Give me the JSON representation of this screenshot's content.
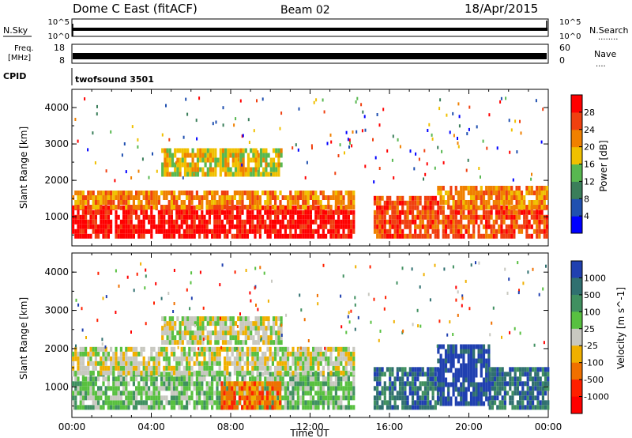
{
  "header": {
    "title": "Dome C East (fitACF)",
    "beam": "Beam 02",
    "date": "18/Apr/2015"
  },
  "status_panels": {
    "nsky_label": "N.Sky",
    "nsearch_label": "N.Search",
    "nsearch_dots": "........",
    "noise_ticks": [
      "10^5",
      "10^0"
    ],
    "freq_label_1": "Freq.",
    "freq_label_2": "[MHz]",
    "freq_ticks": [
      "18",
      "8"
    ],
    "nave_label": "Nave",
    "nave_dots": "....",
    "nave_ticks": [
      "60",
      "0"
    ],
    "cpid_label": "CPID",
    "cpid_value": "twofsound 3501"
  },
  "chart_data": [
    {
      "type": "heatmap",
      "name": "power",
      "ylabel": "Slant Range [km]",
      "xlabel": "Time UT",
      "y_ticks": [
        "1000",
        "2000",
        "3000",
        "4000"
      ],
      "x_ticks": [
        "00:00",
        "04:00",
        "08:00",
        "12:00",
        "16:00",
        "20:00",
        "00:00"
      ],
      "xlim": [
        0,
        24
      ],
      "ylim": [
        200,
        4500
      ],
      "colorbar": {
        "label": "Power [dB]",
        "range": [
          0,
          32
        ],
        "ticks": [
          "4",
          "8",
          "12",
          "16",
          "20",
          "24",
          "28"
        ],
        "colors": [
          "#0000ff",
          "#2050b0",
          "#3a7e5a",
          "#58b850",
          "#f0c000",
          "#f08000",
          "#f04010",
          "#ff0000"
        ]
      },
      "bands": [
        {
          "t0": 0,
          "t1": 14.2,
          "r0": 400,
          "r1": 1200,
          "level": 7
        },
        {
          "t0": 0,
          "t1": 14.2,
          "r0": 1200,
          "r1": 1700,
          "level": 5
        },
        {
          "t0": 15.2,
          "t1": 18.4,
          "r0": 400,
          "r1": 1500,
          "level": 6
        },
        {
          "t0": 18.4,
          "t1": 24,
          "r0": 400,
          "r1": 1200,
          "level": 6
        },
        {
          "t0": 18.4,
          "t1": 24,
          "r0": 1200,
          "r1": 1800,
          "level": 5
        },
        {
          "t0": 4.5,
          "t1": 10.5,
          "r0": 2100,
          "r1": 2800,
          "level": 4
        }
      ]
    },
    {
      "type": "heatmap",
      "name": "velocity",
      "ylabel": "Slant Range [km]",
      "xlabel": "Time UT",
      "y_ticks": [
        "1000",
        "2000",
        "3000",
        "4000"
      ],
      "x_ticks": [
        "00:00",
        "04:00",
        "08:00",
        "12:00",
        "16:00",
        "20:00",
        "00:00"
      ],
      "xlim": [
        0,
        24
      ],
      "ylim": [
        200,
        4500
      ],
      "colorbar": {
        "label": "Velocity [m s^-1]",
        "ticks": [
          "1000",
          "500",
          "100",
          "25",
          "-25",
          "-100",
          "-500",
          "-1000"
        ],
        "colors": [
          "#2040b0",
          "#307070",
          "#409060",
          "#58c040",
          "#c8c8c0",
          "#f0b000",
          "#f07000",
          "#ff2000",
          "#ff0000"
        ]
      },
      "bands": [
        {
          "t0": 0,
          "t1": 14.2,
          "r0": 400,
          "r1": 1300,
          "level": 3
        },
        {
          "t0": 0,
          "t1": 14.2,
          "r0": 1300,
          "r1": 2000,
          "level": 4
        },
        {
          "t0": 7.5,
          "t1": 10.5,
          "r0": 400,
          "r1": 1100,
          "level": 6
        },
        {
          "t0": 15.2,
          "t1": 18.4,
          "r0": 400,
          "r1": 1500,
          "level": 1
        },
        {
          "t0": 18.4,
          "t1": 21,
          "r0": 500,
          "r1": 2000,
          "level": 0
        },
        {
          "t0": 21,
          "t1": 24,
          "r0": 400,
          "r1": 1500,
          "level": 1
        },
        {
          "t0": 4.5,
          "t1": 10.5,
          "r0": 2100,
          "r1": 2800,
          "level": 4
        }
      ]
    }
  ]
}
